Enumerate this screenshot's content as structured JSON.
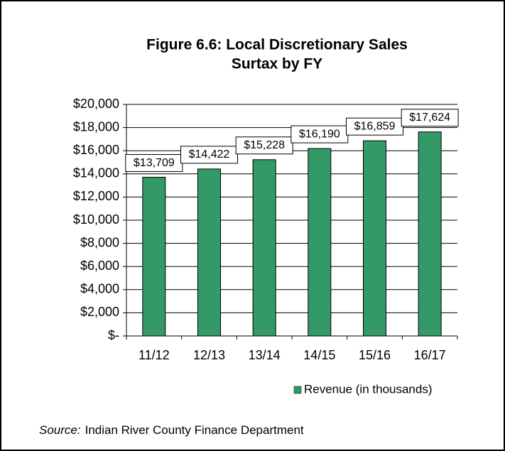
{
  "chart_data": {
    "type": "bar",
    "title": [
      "Figure 6.6: Local Discretionary Sales",
      "Surtax by FY"
    ],
    "categories": [
      "11/12",
      "12/13",
      "13/14",
      "14/15",
      "15/16",
      "16/17"
    ],
    "series": [
      {
        "name": "Revenue (in thousands)",
        "color": "#339966",
        "values": [
          13709,
          14422,
          15228,
          16190,
          16859,
          17624
        ],
        "value_labels": [
          "$13,709",
          "$14,422",
          "$15,228",
          "$16,190",
          "$16,859",
          "$17,624"
        ]
      }
    ],
    "ylim": [
      0,
      20000
    ],
    "yticks": [
      {
        "value": 0,
        "label": "$-"
      },
      {
        "value": 2000,
        "label": "$2,000"
      },
      {
        "value": 4000,
        "label": "$4,000"
      },
      {
        "value": 6000,
        "label": "$6,000"
      },
      {
        "value": 8000,
        "label": "$8,000"
      },
      {
        "value": 10000,
        "label": "$10,000"
      },
      {
        "value": 12000,
        "label": "$12,000"
      },
      {
        "value": 14000,
        "label": "$14,000"
      },
      {
        "value": 16000,
        "label": "$16,000"
      },
      {
        "value": 18000,
        "label": "$18,000"
      },
      {
        "value": 20000,
        "label": "$20,000"
      }
    ],
    "grid": true,
    "legend": "bottom-right"
  },
  "source": {
    "label": "Source:",
    "text": "Indian River County Finance Department"
  }
}
